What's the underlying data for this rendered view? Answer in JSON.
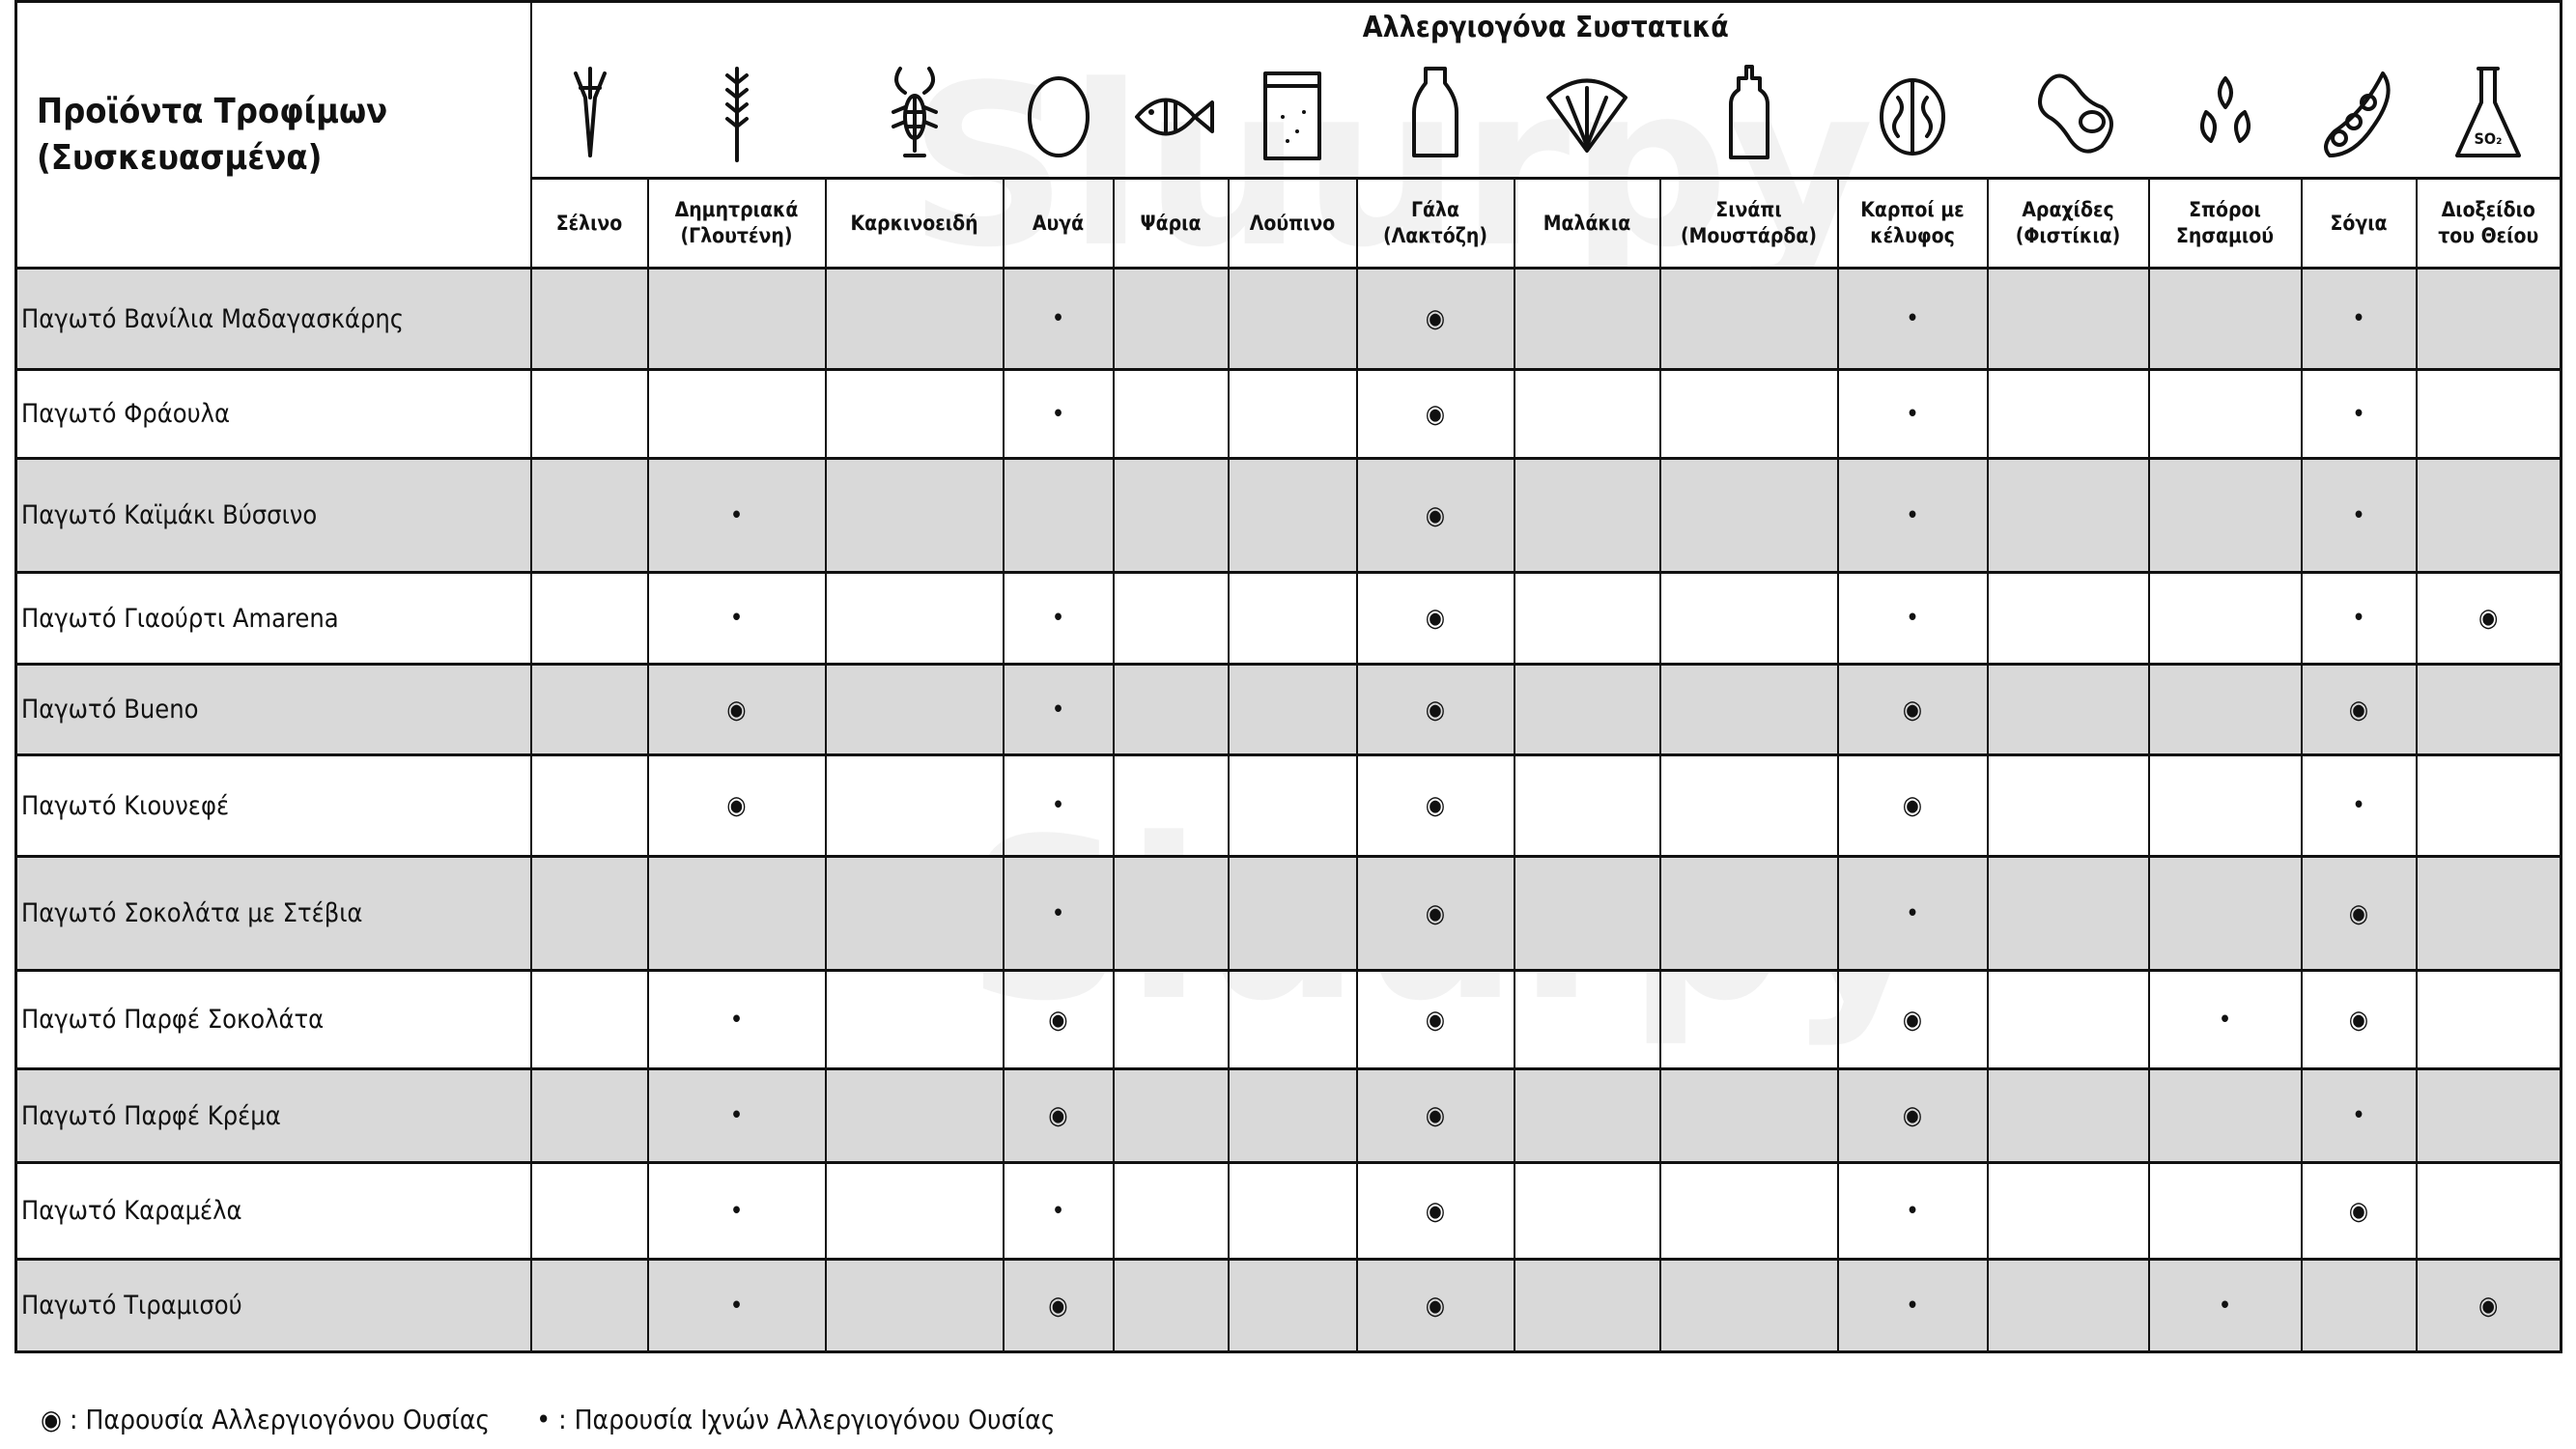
{
  "header": {
    "products_title_line1": "Προϊόντα Τροφίμων",
    "products_title_line2": "(Συσκευασμένα)",
    "allergens_title": "Αλλεργιογόνα Συστατικά"
  },
  "allergens": [
    {
      "label1": "Σέλινο",
      "label2": "",
      "icon": "celery-icon"
    },
    {
      "label1": "Δημητριακά",
      "label2": "(Γλουτένη)",
      "icon": "wheat-icon"
    },
    {
      "label1": "Καρκινοειδή",
      "label2": "",
      "icon": "lobster-icon"
    },
    {
      "label1": "Αυγά",
      "label2": "",
      "icon": "egg-icon"
    },
    {
      "label1": "Ψάρια",
      "label2": "",
      "icon": "fish-icon"
    },
    {
      "label1": "Λούπινο",
      "label2": "",
      "icon": "lupin-bag-icon"
    },
    {
      "label1": "Γάλα",
      "label2": "(Λακτόζη)",
      "icon": "milk-bottle-icon"
    },
    {
      "label1": "Μαλάκια",
      "label2": "",
      "icon": "shell-icon"
    },
    {
      "label1": "Σινάπι",
      "label2": "(Μουστάρδα)",
      "icon": "mustard-bottle-icon"
    },
    {
      "label1": "Καρποί με",
      "label2": "κέλυφος",
      "icon": "walnut-icon"
    },
    {
      "label1": "Αραχίδες",
      "label2": "(Φιστίκια)",
      "icon": "peanut-icon"
    },
    {
      "label1": "Σπόροι",
      "label2": "Σησαμιού",
      "icon": "sesame-icon"
    },
    {
      "label1": "Σόγια",
      "label2": "",
      "icon": "soy-icon"
    },
    {
      "label1": "Διοξείδιο",
      "label2": "του Θείου",
      "icon": "so2-flask-icon"
    }
  ],
  "symbols": {
    "present": "◉",
    "trace": "•"
  },
  "products": [
    {
      "name": "Παγωτό Βανίλια Μαδαγασκάρης",
      "marks": [
        "",
        "",
        "",
        "trace",
        "",
        "",
        "present",
        "",
        "",
        "trace",
        "",
        "",
        "trace",
        ""
      ]
    },
    {
      "name": "Παγωτό Φράουλα",
      "marks": [
        "",
        "",
        "",
        "trace",
        "",
        "",
        "present",
        "",
        "",
        "trace",
        "",
        "",
        "trace",
        ""
      ]
    },
    {
      "name": "Παγωτό Καϊμάκι Βύσσινο",
      "marks": [
        "",
        "trace",
        "",
        "",
        "",
        "",
        "present",
        "",
        "",
        "trace",
        "",
        "",
        "trace",
        ""
      ]
    },
    {
      "name": "Παγωτό Γιαούρτι Amarena",
      "marks": [
        "",
        "trace",
        "",
        "trace",
        "",
        "",
        "present",
        "",
        "",
        "trace",
        "",
        "",
        "trace",
        "present"
      ]
    },
    {
      "name": "Παγωτό Bueno",
      "marks": [
        "",
        "present",
        "",
        "trace",
        "",
        "",
        "present",
        "",
        "",
        "present",
        "",
        "",
        "present",
        ""
      ]
    },
    {
      "name": "Παγωτό Κιουνεφέ",
      "marks": [
        "",
        "present",
        "",
        "trace",
        "",
        "",
        "present",
        "",
        "",
        "present",
        "",
        "",
        "trace",
        ""
      ]
    },
    {
      "name": "Παγωτό Σοκολάτα με Στέβια",
      "marks": [
        "",
        "",
        "",
        "trace",
        "",
        "",
        "present",
        "",
        "",
        "trace",
        "",
        "",
        "present",
        ""
      ]
    },
    {
      "name": "Παγωτό Παρφέ Σοκολάτα",
      "marks": [
        "",
        "trace",
        "",
        "present",
        "",
        "",
        "present",
        "",
        "",
        "present",
        "",
        "trace",
        "present",
        ""
      ]
    },
    {
      "name": "Παγωτό Παρφέ Κρέμα",
      "marks": [
        "",
        "trace",
        "",
        "present",
        "",
        "",
        "present",
        "",
        "",
        "present",
        "",
        "",
        "trace",
        ""
      ]
    },
    {
      "name": "Παγωτό Καραμέλα",
      "marks": [
        "",
        "trace",
        "",
        "trace",
        "",
        "",
        "present",
        "",
        "",
        "trace",
        "",
        "",
        "present",
        ""
      ]
    },
    {
      "name": "Παγωτό Τιραμισού",
      "marks": [
        "",
        "trace",
        "",
        "present",
        "",
        "",
        "present",
        "",
        "",
        "trace",
        "",
        "trace",
        "",
        "present"
      ]
    }
  ],
  "legend": {
    "present": "◉ : Παρουσία Αλλεργιογόνου Ουσίας",
    "trace": "• : Παρουσία Ιχνών Αλλεργιογόνου Ουσίας"
  },
  "watermark": "Sluurpy"
}
